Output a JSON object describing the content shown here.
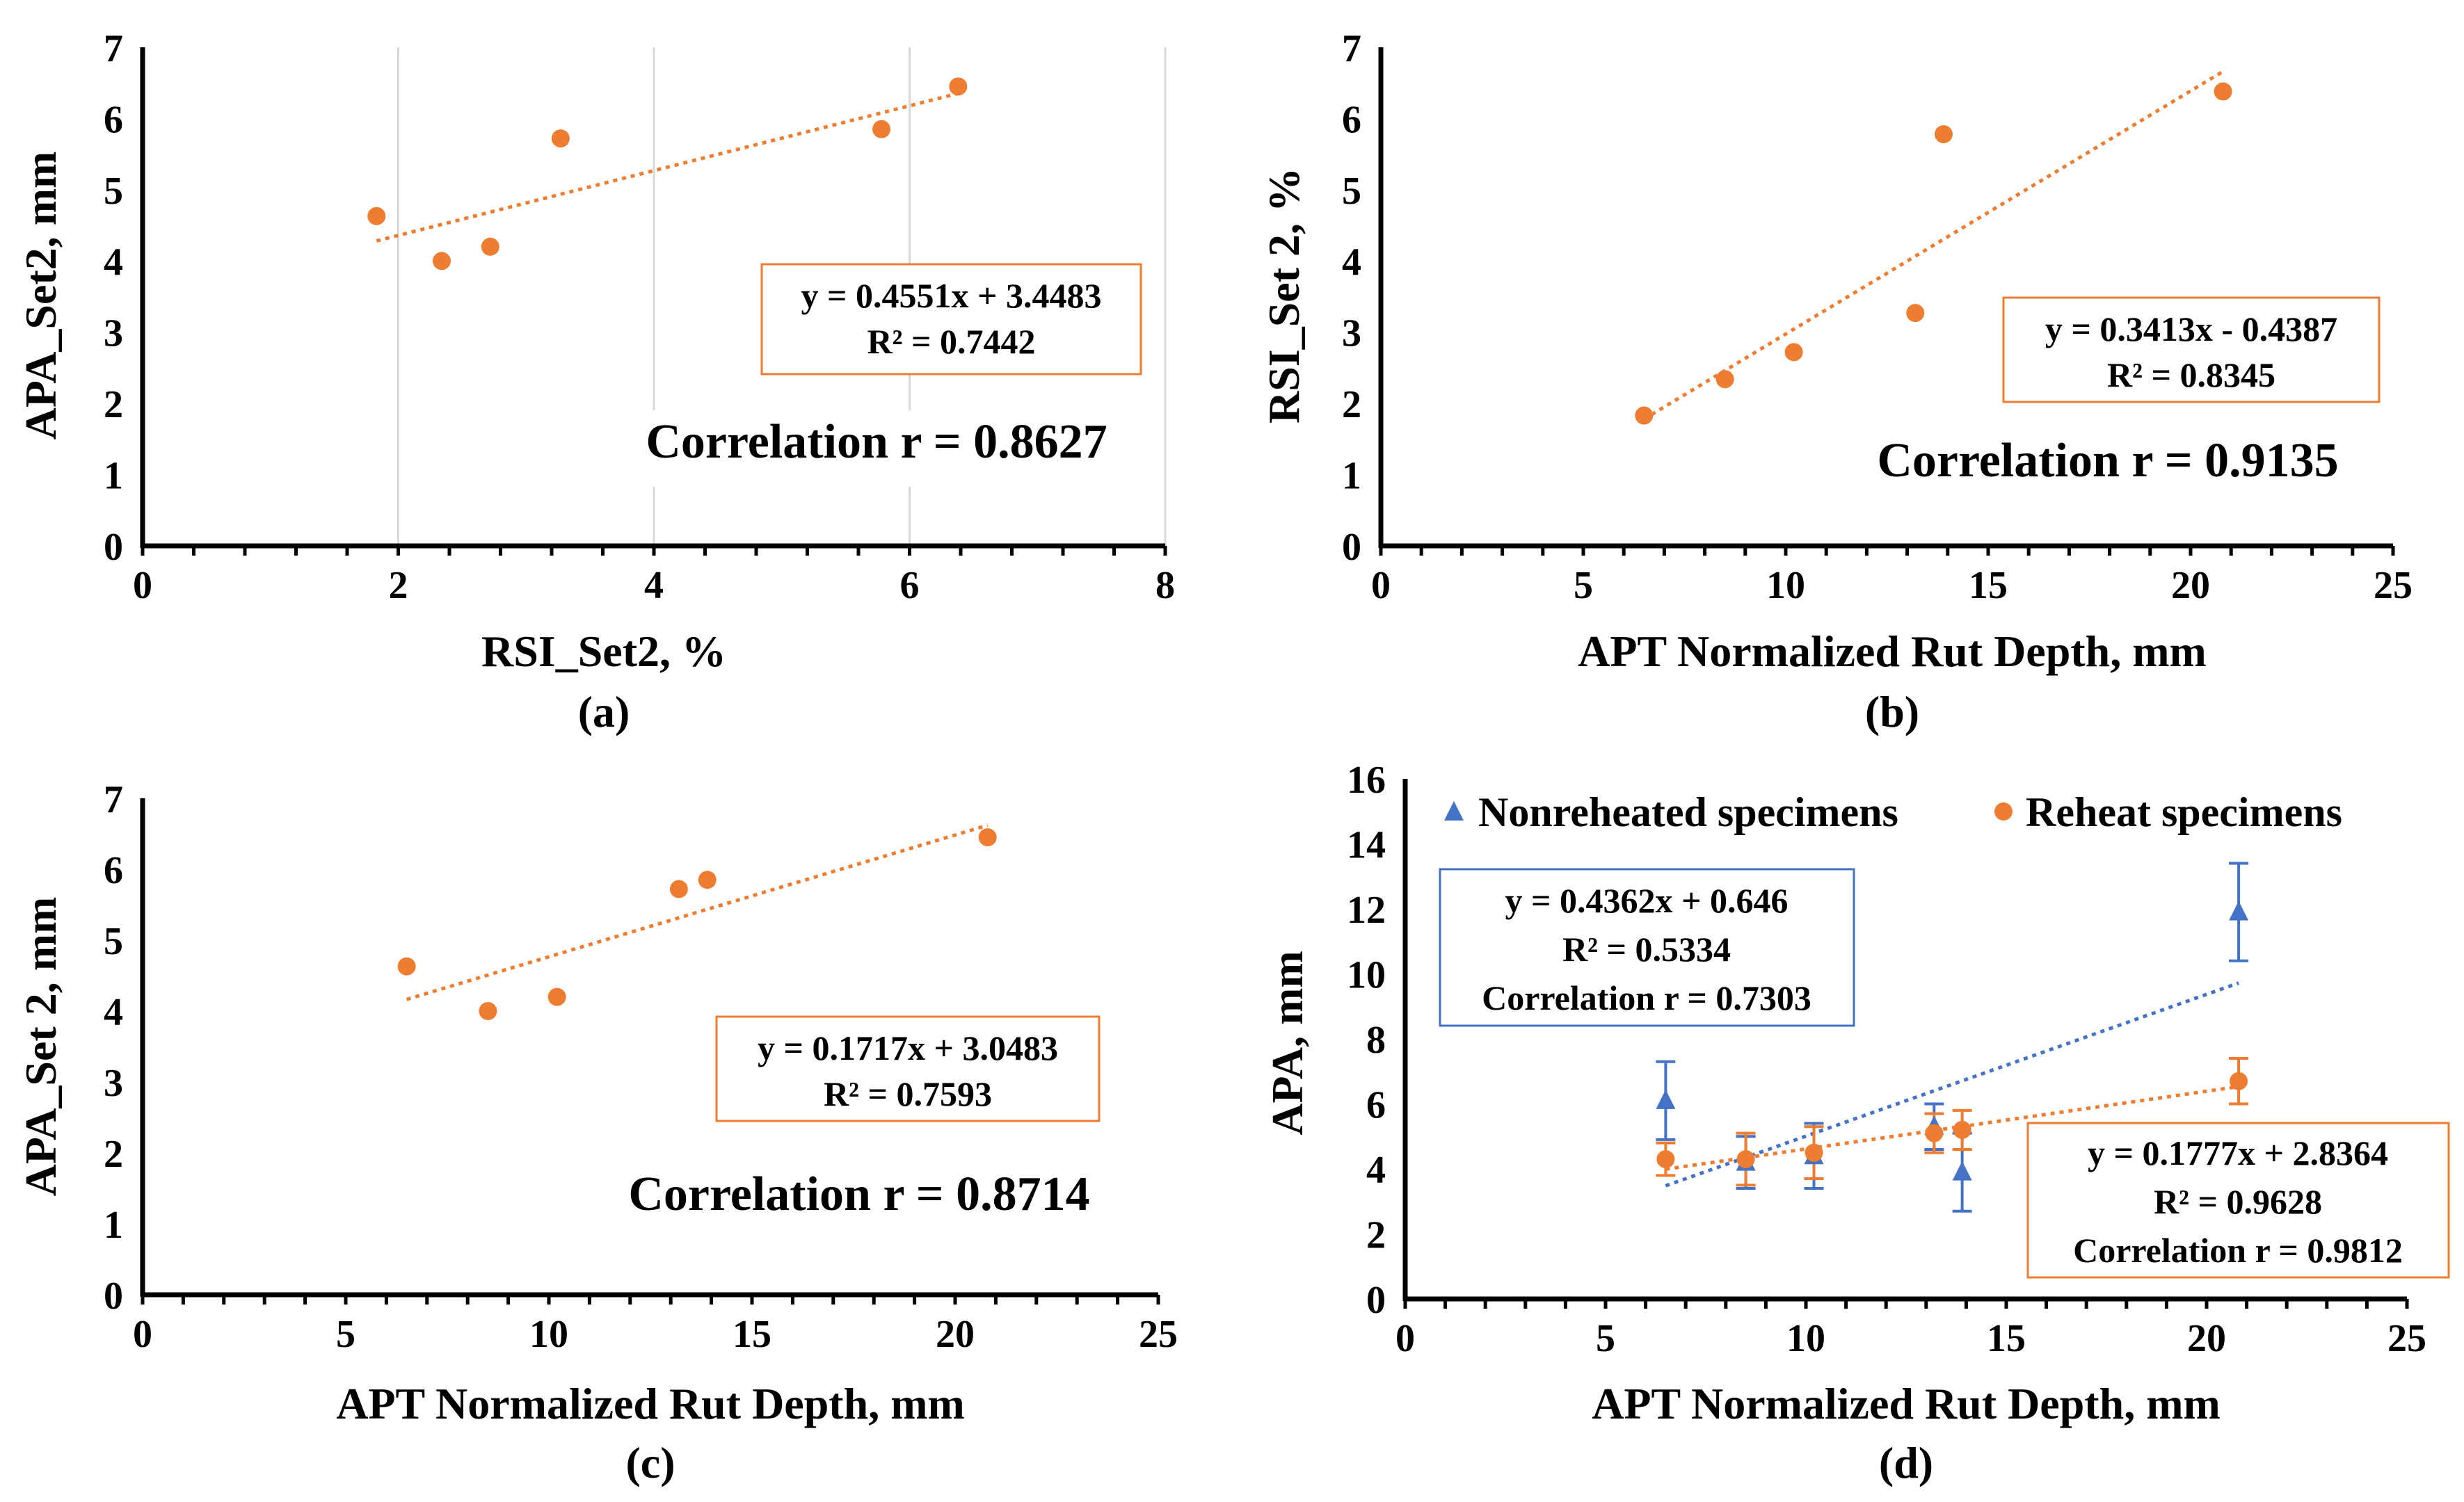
{
  "chart_data": [
    {
      "type": "scatter",
      "panel_label": "(a)",
      "xlabel": "RSI_Set2, %",
      "ylabel": "APA_Set2, mm",
      "xlim": [
        0,
        8
      ],
      "ylim": [
        0,
        7
      ],
      "xticks": [
        0,
        2,
        4,
        6,
        8
      ],
      "yticks": [
        0,
        1,
        2,
        3,
        4,
        5,
        6,
        7
      ],
      "x_minor_step": 0.4,
      "grid": "vertical",
      "series": [
        {
          "name": "APA_Set2",
          "color": "#ED7D31",
          "marker": "circle",
          "x": [
            1.83,
            2.34,
            2.72,
            3.27,
            5.78,
            6.38
          ],
          "y": [
            4.63,
            4.0,
            4.2,
            5.72,
            5.85,
            6.45
          ],
          "trendline": {
            "x": [
              1.83,
              6.38
            ],
            "slope": 0.4551,
            "intercept": 3.4483
          }
        }
      ],
      "equation_box": {
        "lines": [
          "y = 0.4551x + 3.4483",
          "R² = 0.7442"
        ],
        "border_color": "#ED7D31"
      },
      "annotation": "Correlation r = 0.8627"
    },
    {
      "type": "scatter",
      "panel_label": "(b)",
      "xlabel": "APT Normalized Rut Depth, mm",
      "ylabel": "RSI_Set 2, %",
      "xlim": [
        0,
        25
      ],
      "ylim": [
        0,
        7
      ],
      "xticks": [
        0,
        5,
        10,
        15,
        20,
        25
      ],
      "yticks": [
        0,
        1,
        2,
        3,
        4,
        5,
        6,
        7
      ],
      "x_minor_step": 1,
      "grid": "none",
      "series": [
        {
          "name": "RSI_Set 2",
          "color": "#ED7D31",
          "marker": "circle",
          "x": [
            6.5,
            8.5,
            10.2,
            13.2,
            13.9,
            20.8
          ],
          "y": [
            1.83,
            2.34,
            2.72,
            3.27,
            5.78,
            6.38
          ],
          "trendline": {
            "x": [
              6.5,
              20.8
            ],
            "slope": 0.3413,
            "intercept": -0.4387
          }
        }
      ],
      "equation_box": {
        "lines": [
          "y = 0.3413x - 0.4387",
          "R² = 0.8345"
        ],
        "border_color": "#ED7D31"
      },
      "annotation": "Correlation r = 0.9135"
    },
    {
      "type": "scatter",
      "panel_label": "(c)",
      "xlabel": "APT Normalized Rut Depth, mm",
      "ylabel": "APA_Set 2, mm",
      "xlim": [
        0,
        25
      ],
      "ylim": [
        0,
        7
      ],
      "xticks": [
        0,
        5,
        10,
        15,
        20,
        25
      ],
      "yticks": [
        0,
        1,
        2,
        3,
        4,
        5,
        6,
        7
      ],
      "x_minor_step": 1,
      "grid": "none",
      "series": [
        {
          "name": "APA_Set 2",
          "color": "#ED7D31",
          "marker": "circle",
          "x": [
            6.5,
            8.5,
            10.2,
            13.2,
            13.9,
            20.8
          ],
          "y": [
            4.63,
            4.0,
            4.2,
            5.72,
            5.85,
            6.45
          ],
          "trendline": {
            "x": [
              6.5,
              20.8
            ],
            "slope": 0.1717,
            "intercept": 3.0483
          }
        }
      ],
      "equation_box": {
        "lines": [
          "y = 0.1717x + 3.0483",
          "R² = 0.7593"
        ],
        "border_color": "#ED7D31"
      },
      "annotation": "Correlation r = 0.8714"
    },
    {
      "type": "scatter",
      "panel_label": "(d)",
      "xlabel": "APT Normalized Rut Depth, mm",
      "ylabel": "APA, mm",
      "xlim": [
        0,
        25
      ],
      "ylim": [
        0,
        16
      ],
      "xticks": [
        0,
        5,
        10,
        15,
        20,
        25
      ],
      "yticks": [
        0,
        2,
        4,
        6,
        8,
        10,
        12,
        14,
        16
      ],
      "x_minor_step": 1,
      "grid": "none",
      "legend": "top",
      "series": [
        {
          "name": "Nonreheated specimens",
          "color": "#4472C4",
          "marker": "triangle",
          "x": [
            6.5,
            8.5,
            10.2,
            13.2,
            13.9,
            20.8
          ],
          "y": [
            6.1,
            4.2,
            4.4,
            5.3,
            3.9,
            11.9
          ],
          "err": [
            1.2,
            0.8,
            1.0,
            0.7,
            1.2,
            1.5
          ],
          "trendline": {
            "x": [
              6.5,
              20.8
            ],
            "slope": 0.4362,
            "intercept": 0.646
          }
        },
        {
          "name": "Reheat specimens",
          "color": "#ED7D31",
          "marker": "circle",
          "x": [
            6.5,
            8.5,
            10.2,
            13.2,
            13.9,
            20.8
          ],
          "y": [
            4.3,
            4.3,
            4.5,
            5.1,
            5.2,
            6.7
          ],
          "err": [
            0.5,
            0.8,
            0.8,
            0.6,
            0.6,
            0.7
          ],
          "trendline": {
            "x": [
              6.5,
              20.8
            ],
            "slope": 0.1777,
            "intercept": 2.8364
          }
        }
      ],
      "equation_boxes": [
        {
          "lines": [
            "y = 0.4362x + 0.646",
            "R² = 0.5334",
            "Correlation r = 0.7303"
          ],
          "border_color": "#4472C4"
        },
        {
          "lines": [
            "y = 0.1777x + 2.8364",
            "R² = 0.9628",
            "Correlation r = 0.9812"
          ],
          "border_color": "#ED7D31"
        }
      ]
    }
  ]
}
